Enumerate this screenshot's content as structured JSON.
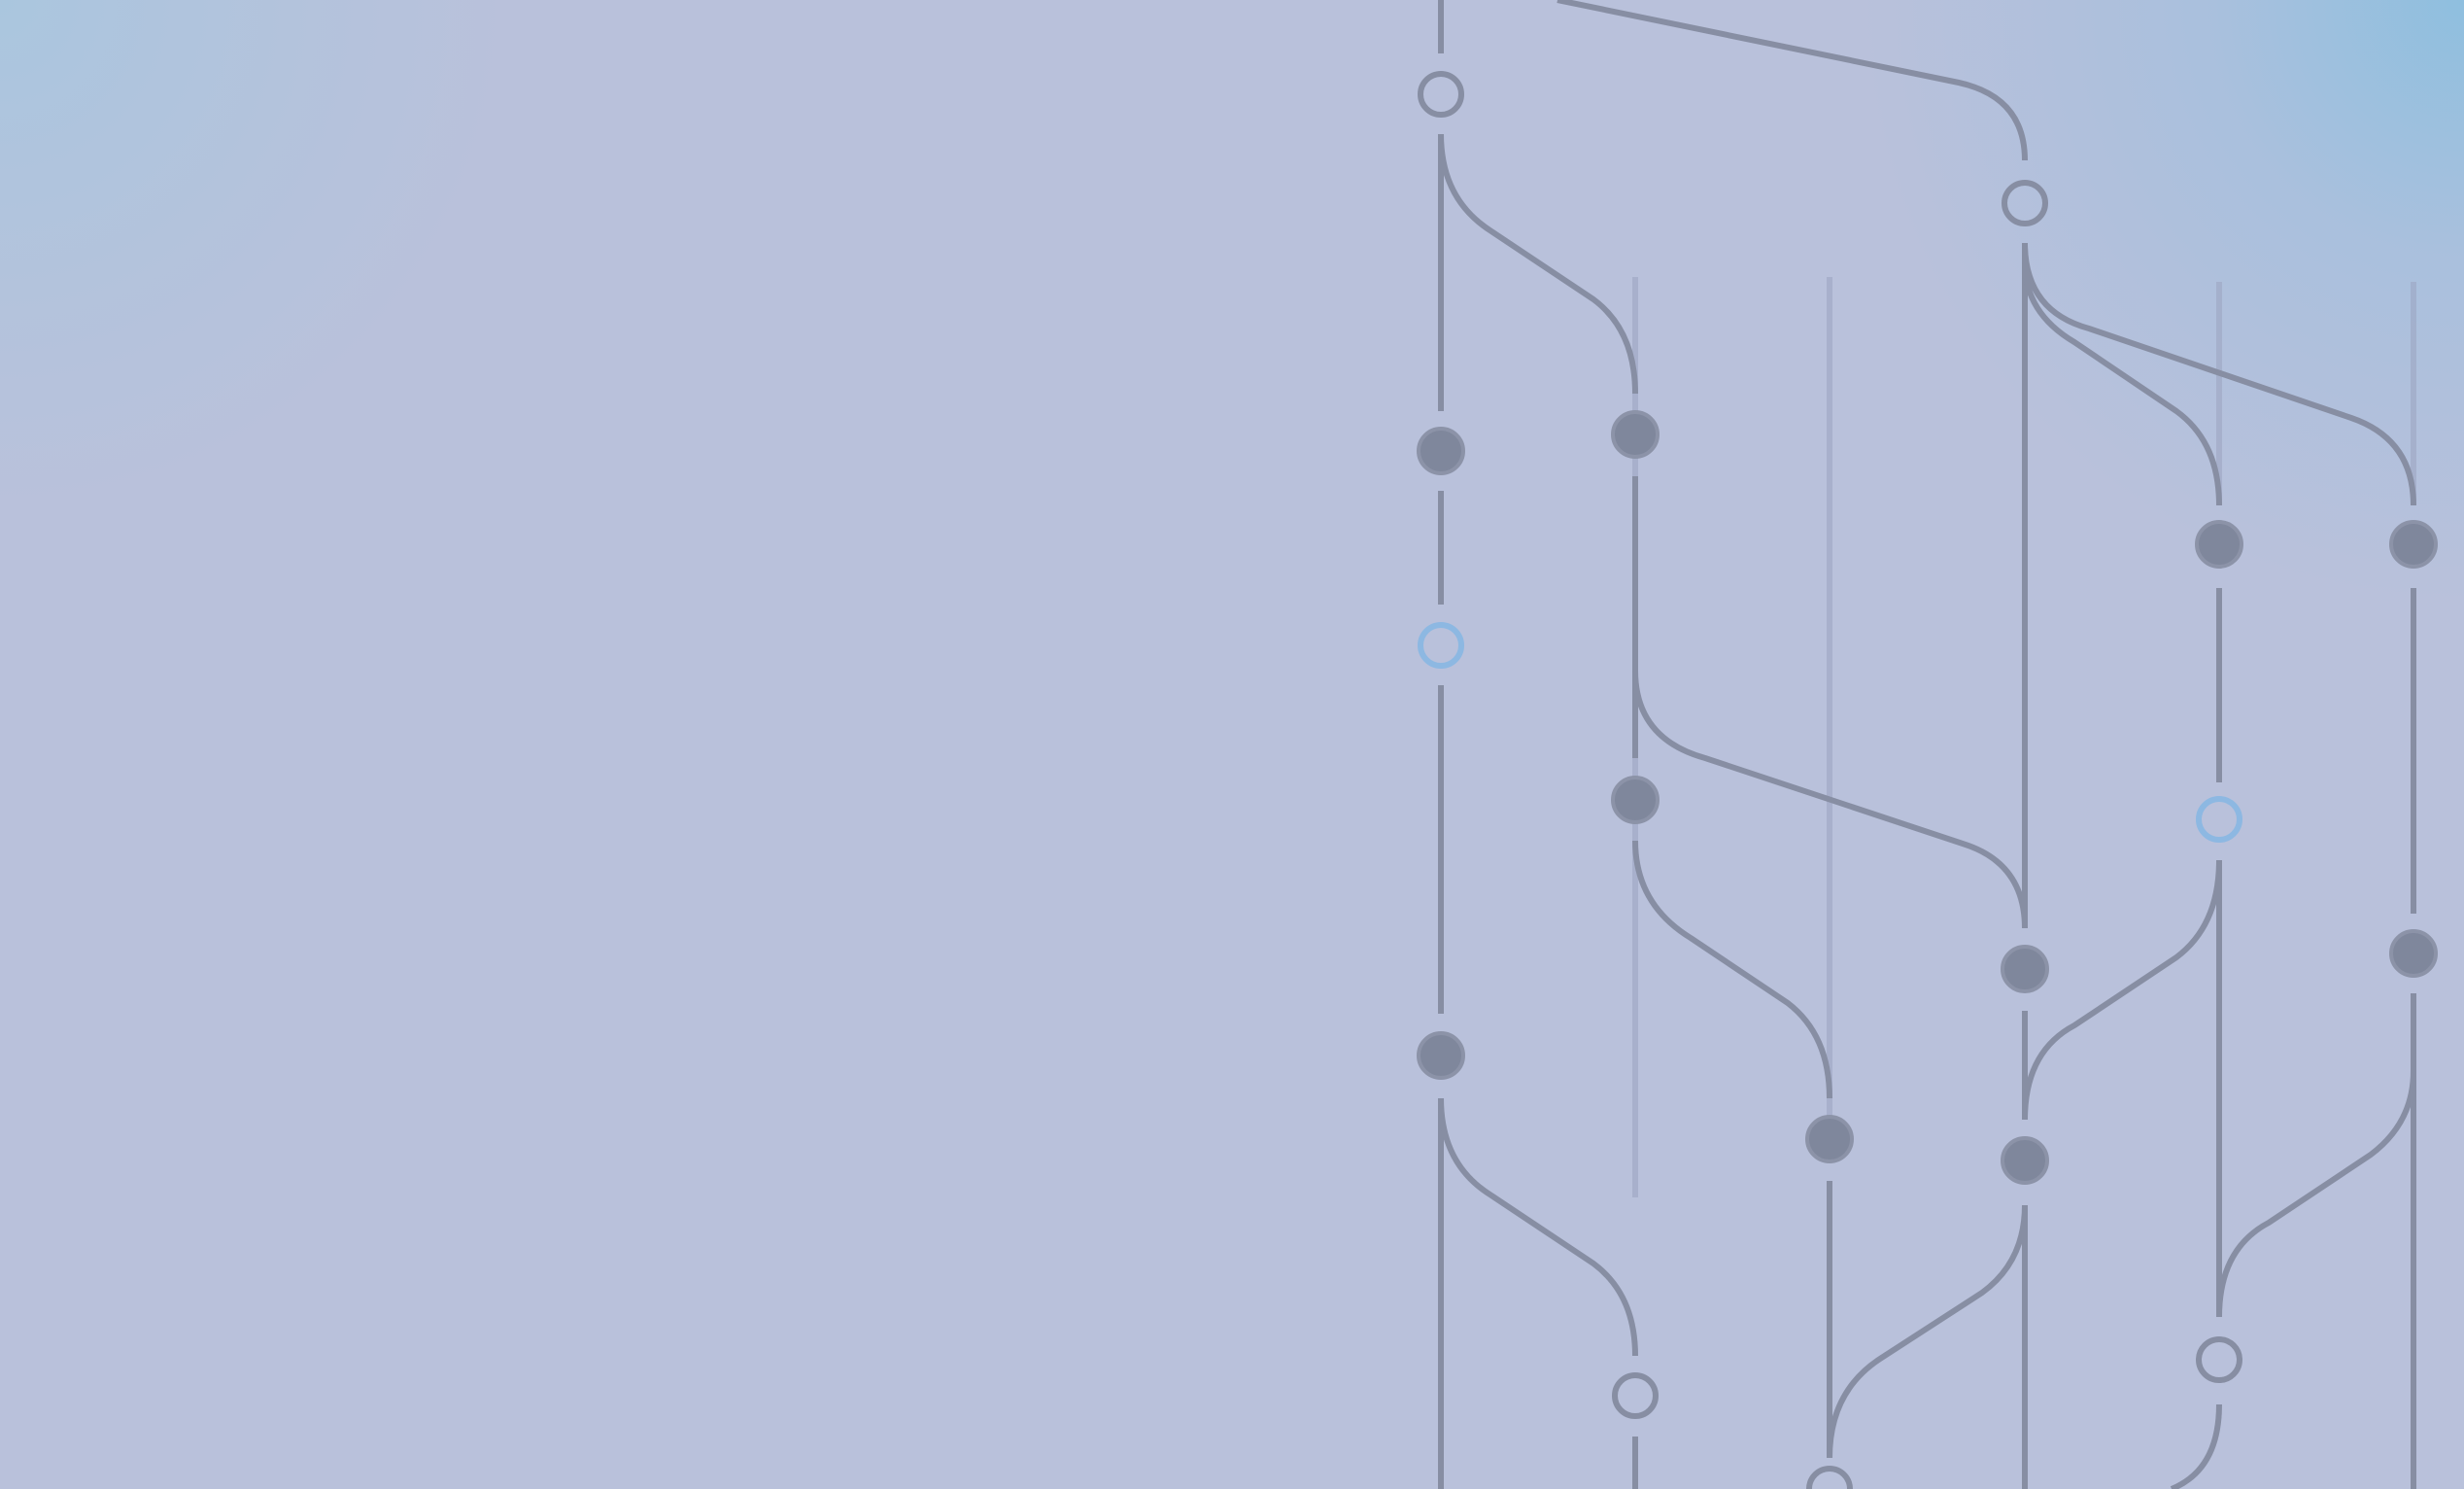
{
  "scene": {
    "background": "#b9c1db",
    "accent_glow_left": "#9ecae1",
    "accent_glow_right": "#78bee1",
    "line_color": "#878ea3",
    "node_fill": "#7f879c",
    "node_highlight": "#8db8e2"
  }
}
